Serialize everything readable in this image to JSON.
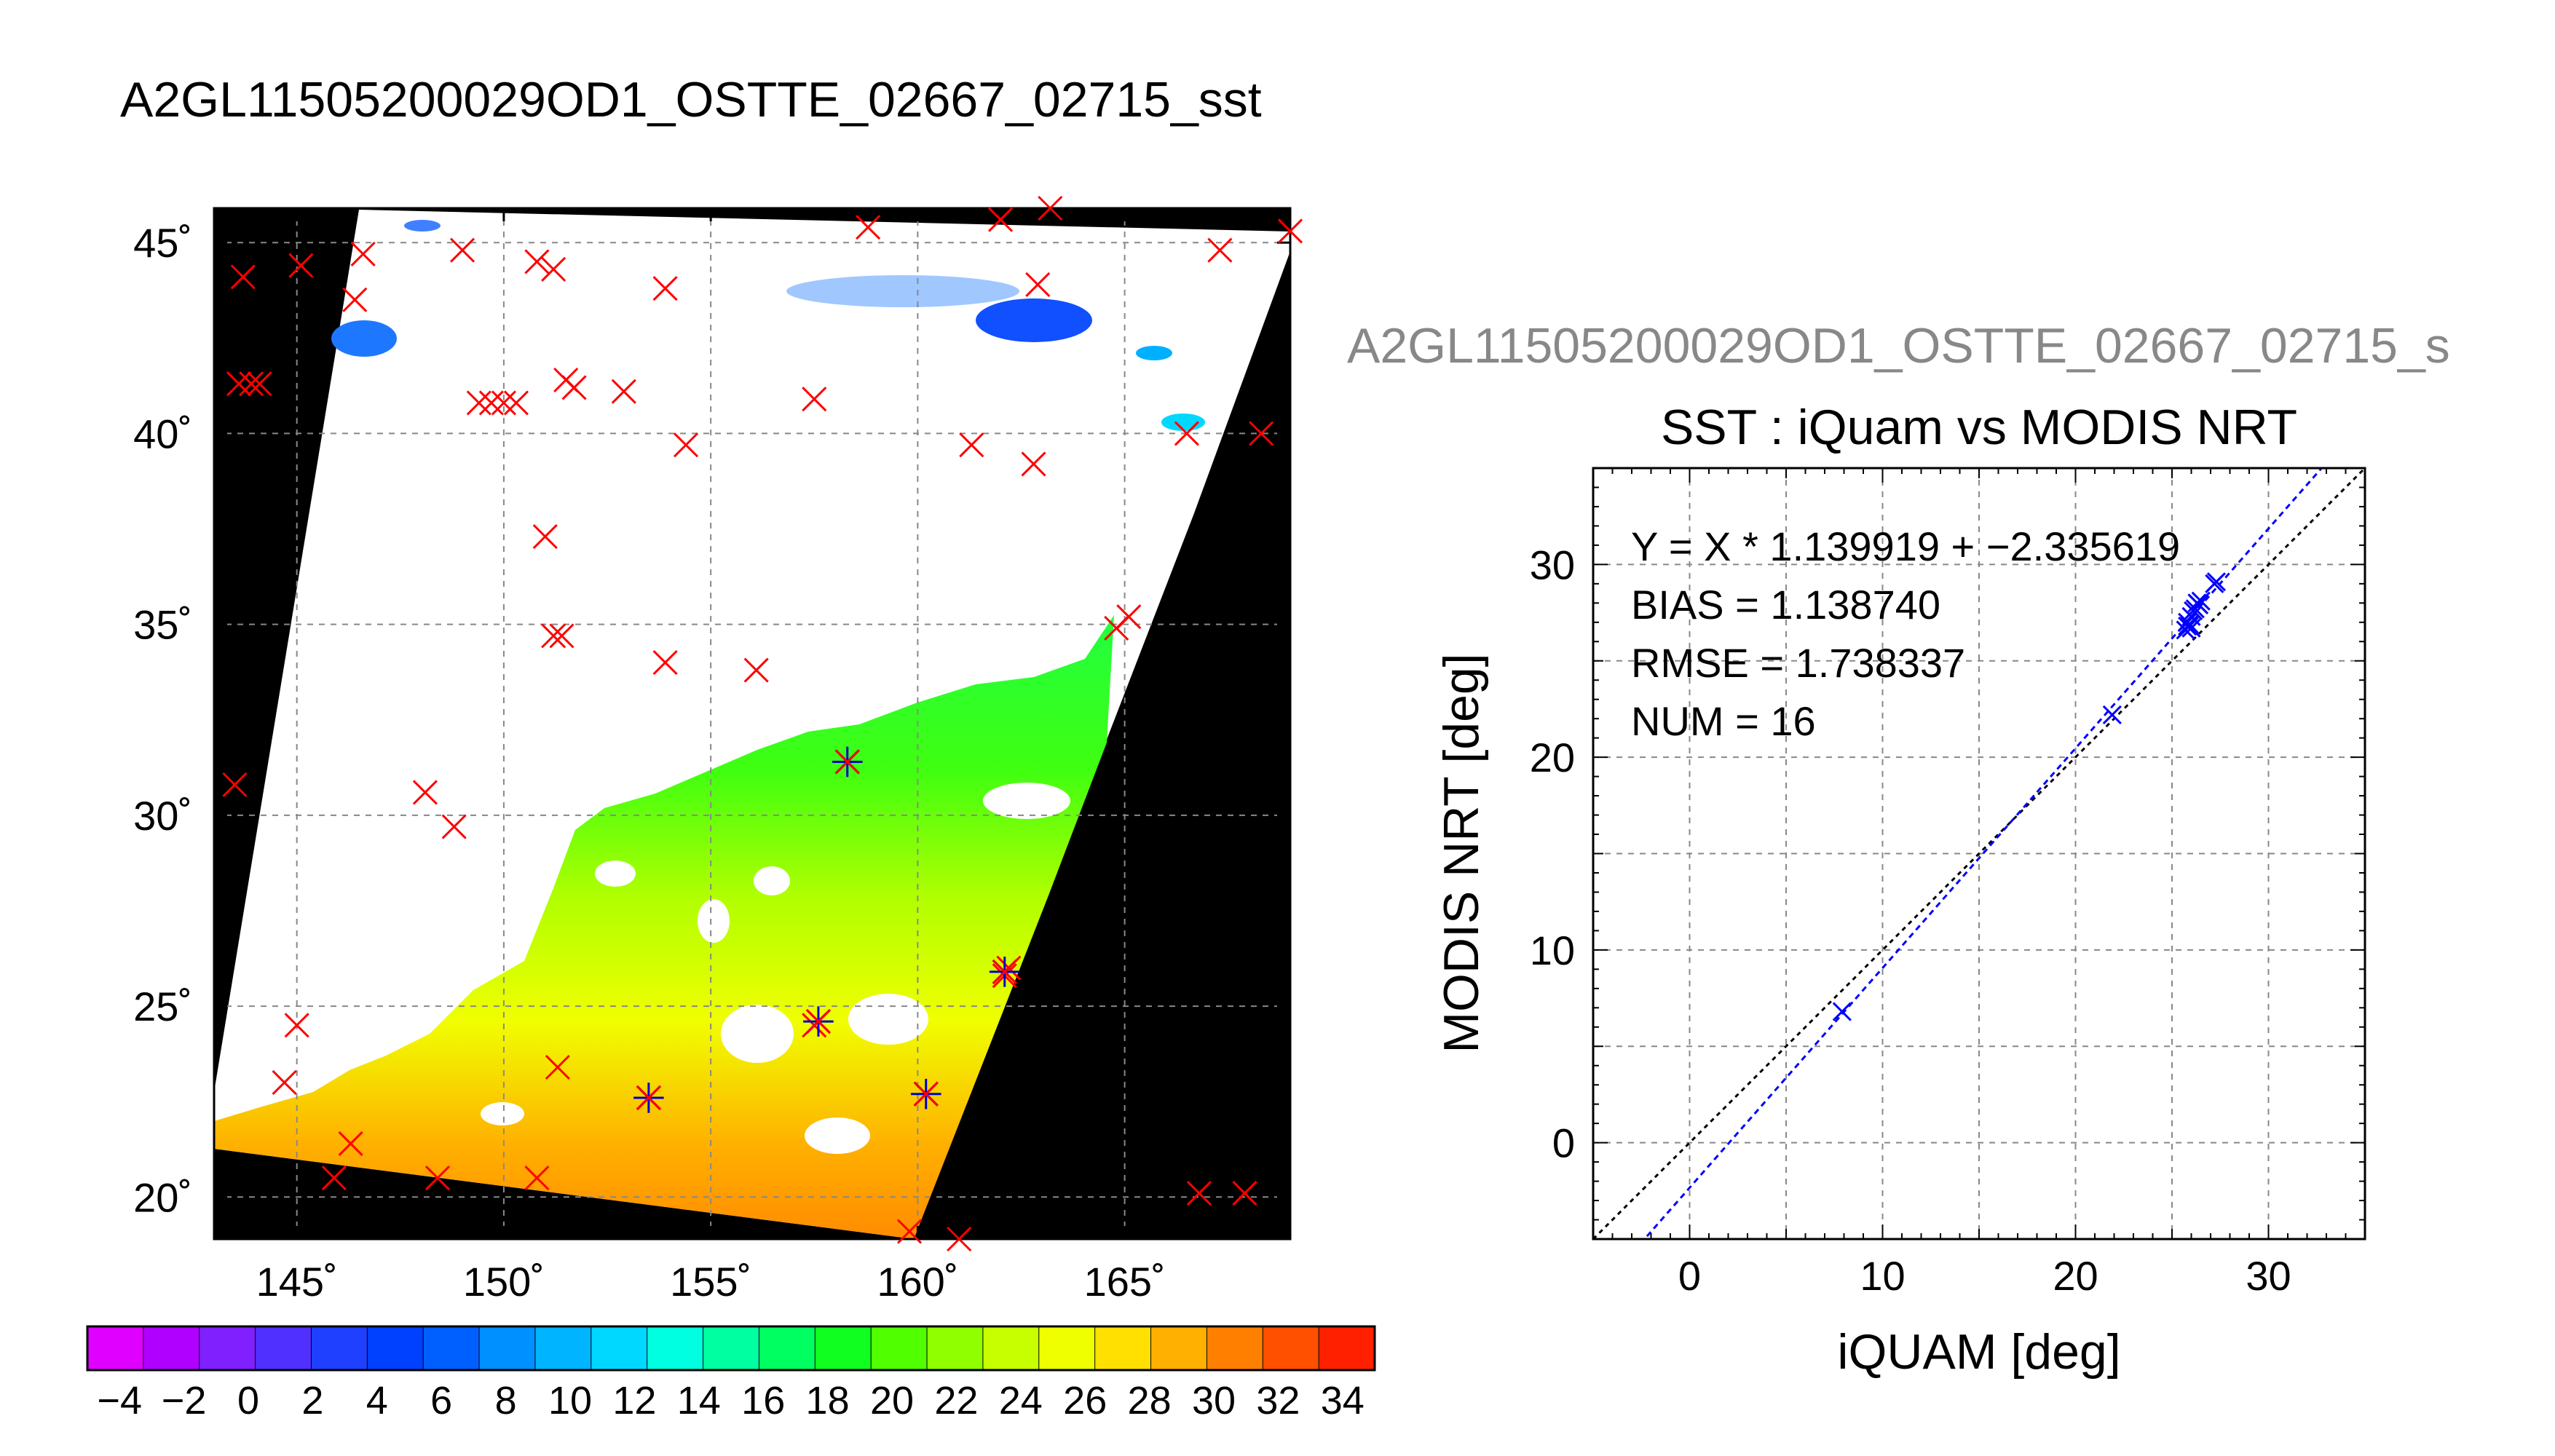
{
  "figure_title": "A2GL11505200029OD1_OSTTE_02667_02715_sst",
  "colors": {
    "land_background": "#000000",
    "cloud_mask": "#ffffff",
    "insitu_marker": "#ff0000",
    "matchup_marker": "#0000cc",
    "fit_line": "#0000ff",
    "identity_line": "#000000",
    "grid": "#888888",
    "scatter_subtitle": "#888888"
  },
  "chart_data": [
    {
      "type": "heatmap",
      "name": "SST map",
      "x_tick_labels": [
        "145˚",
        "150˚",
        "155˚",
        "160˚",
        "165˚"
      ],
      "x_ticks": [
        145,
        150,
        155,
        160,
        165
      ],
      "y_tick_labels": [
        "20˚",
        "25˚",
        "30˚",
        "35˚",
        "40˚",
        "45˚"
      ],
      "y_ticks": [
        20,
        25,
        30,
        35,
        40,
        45
      ],
      "xlim": [
        143,
        169
      ],
      "ylim": [
        18.9,
        45.9
      ],
      "grid": true,
      "colorbar": {
        "tick_labels": [
          "−4",
          "−2",
          "0",
          "2",
          "4",
          "6",
          "8",
          "10",
          "12",
          "14",
          "16",
          "18",
          "20",
          "22",
          "24",
          "26",
          "28",
          "30",
          "32",
          "34"
        ],
        "range": [
          -5,
          35
        ],
        "colors": [
          "#e000ff",
          "#b000ff",
          "#8020ff",
          "#5030ff",
          "#2040ff",
          "#0040ff",
          "#0060ff",
          "#0090ff",
          "#00b4ff",
          "#00d8ff",
          "#00ffe0",
          "#00ffa0",
          "#00ff60",
          "#10ff20",
          "#50ff00",
          "#90ff00",
          "#c8ff00",
          "#f0ff00",
          "#ffe000",
          "#ffb000",
          "#ff8000",
          "#ff5000",
          "#ff2000"
        ]
      },
      "insitu_points": [
        [
          143.7,
          44.1
        ],
        [
          145.1,
          44.4
        ],
        [
          146.6,
          44.7
        ],
        [
          149.0,
          44.8
        ],
        [
          150.8,
          44.5
        ],
        [
          151.2,
          44.3
        ],
        [
          153.9,
          43.8
        ],
        [
          158.8,
          45.4
        ],
        [
          162.0,
          45.6
        ],
        [
          163.2,
          45.9
        ],
        [
          167.3,
          44.8
        ],
        [
          169.0,
          45.3
        ],
        [
          162.9,
          43.9
        ],
        [
          146.4,
          43.5
        ],
        [
          143.6,
          41.3
        ],
        [
          143.9,
          41.3
        ],
        [
          144.1,
          41.3
        ],
        [
          149.4,
          40.8
        ],
        [
          149.7,
          40.8
        ],
        [
          150.0,
          40.8
        ],
        [
          150.3,
          40.8
        ],
        [
          151.5,
          41.4
        ],
        [
          151.7,
          41.2
        ],
        [
          152.9,
          41.1
        ],
        [
          154.4,
          39.7
        ],
        [
          157.5,
          40.9
        ],
        [
          161.3,
          39.7
        ],
        [
          162.8,
          39.2
        ],
        [
          166.5,
          40.0
        ],
        [
          168.3,
          40.0
        ],
        [
          151.0,
          37.3
        ],
        [
          151.2,
          34.7
        ],
        [
          151.4,
          34.7
        ],
        [
          153.9,
          34.0
        ],
        [
          156.1,
          33.8
        ],
        [
          164.8,
          34.9
        ],
        [
          165.1,
          35.2
        ],
        [
          143.5,
          30.8
        ],
        [
          148.1,
          30.6
        ],
        [
          148.8,
          29.7
        ],
        [
          158.3,
          31.4
        ],
        [
          145.0,
          24.5
        ],
        [
          144.7,
          23.0
        ],
        [
          151.3,
          23.4
        ],
        [
          153.5,
          22.6
        ],
        [
          157.5,
          24.5
        ],
        [
          160.2,
          22.7
        ],
        [
          162.2,
          26.0
        ],
        [
          162.1,
          25.8
        ],
        [
          146.3,
          21.4
        ],
        [
          145.9,
          20.5
        ],
        [
          148.4,
          20.5
        ],
        [
          150.8,
          20.5
        ],
        [
          159.8,
          19.1
        ],
        [
          161.0,
          18.9
        ],
        [
          166.8,
          20.1
        ],
        [
          167.9,
          20.1
        ]
      ],
      "matchup_points": [
        [
          158.3,
          31.4
        ],
        [
          157.6,
          24.6
        ],
        [
          153.5,
          22.6
        ],
        [
          160.2,
          22.7
        ],
        [
          162.1,
          25.9
        ]
      ]
    },
    {
      "type": "scatter",
      "subtitle": "A2GL11505200029OD1_OSTTE_02667_02715_s",
      "title": "SST : iQuam vs MODIS NRT",
      "xlabel": "iQUAM [deg]",
      "ylabel": "MODIS NRT [deg]",
      "xlim": [
        -5,
        35
      ],
      "ylim": [
        -5,
        35
      ],
      "x_ticks": [
        0,
        10,
        20,
        30
      ],
      "x_tick_labels": [
        "0",
        "10",
        "20",
        "30"
      ],
      "y_ticks": [
        0,
        10,
        20,
        30
      ],
      "y_tick_labels": [
        "0",
        "10",
        "20",
        "30"
      ],
      "grid": true,
      "stats": [
        "Y = X * 1.139919 + −2.335619",
        "BIAS = 1.138740",
        "RMSE = 1.738337",
        "NUM = 16"
      ],
      "fit": {
        "slope": 1.139919,
        "intercept": -2.335619
      },
      "points": [
        [
          7.9,
          6.8
        ],
        [
          21.9,
          22.2
        ],
        [
          25.7,
          26.6
        ],
        [
          25.8,
          26.8
        ],
        [
          25.9,
          26.9
        ],
        [
          26.0,
          26.7
        ],
        [
          25.8,
          27.0
        ],
        [
          26.0,
          27.3
        ],
        [
          26.1,
          27.6
        ],
        [
          26.2,
          27.7
        ],
        [
          26.3,
          28.0
        ],
        [
          26.4,
          27.9
        ],
        [
          26.5,
          28.1
        ],
        [
          27.2,
          29.0
        ],
        [
          27.3,
          29.1
        ],
        [
          25.9,
          26.8
        ]
      ]
    }
  ]
}
